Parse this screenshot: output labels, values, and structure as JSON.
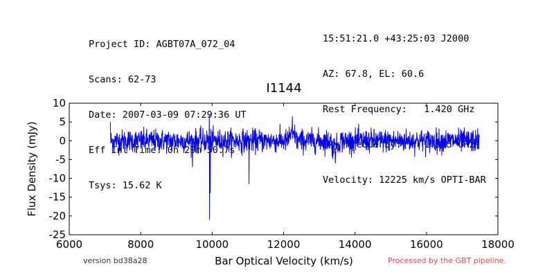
{
  "header_left": [
    "Project ID: AGBT07A_072_04",
    "Scans: 62-73",
    "Date: 2007-03-09 07:29:36 UT",
    "Eff Int Time: 0h 29m 50.7s",
    "Tsys: 15.62 K"
  ],
  "header_right": [
    "15:51:21.0 +43:25:03 J2000",
    "AZ: 67.8, EL: 60.6",
    "Rest Frequency:   1.420 GHz",
    "Sky Frequency:    1.365 GHz",
    "Velocity: 12225 km/s OPTI-BAR"
  ],
  "footer": {
    "version": "version bd38a28",
    "pipeline": "Processed by the GBT pipeline."
  },
  "colors": {
    "line": "#0000ff",
    "pipeline_text": "#ff4444",
    "axes": "#000000"
  },
  "chart_data": {
    "type": "line",
    "title": "I1144",
    "xlabel": "Bar Optical Velocity (km/s)",
    "ylabel": "Flux Density (mJy)",
    "xlim": [
      6000,
      18000
    ],
    "ylim": [
      -25,
      10
    ],
    "xticks": [
      6000,
      8000,
      10000,
      12000,
      14000,
      16000,
      18000
    ],
    "yticks": [
      10,
      5,
      0,
      -5,
      -10,
      -15,
      -20,
      -25
    ],
    "grid": false,
    "series": [
      {
        "color": "#0000ff",
        "x_range": [
          7150,
          17480
        ],
        "noise_rms": 1.5,
        "features": [
          {
            "x": 7150,
            "y": 5
          },
          {
            "x": 9450,
            "y": -7
          },
          {
            "x": 9920,
            "y": 7
          },
          {
            "x": 9930,
            "y": -21
          },
          {
            "x": 9945,
            "y": -14
          },
          {
            "x": 11030,
            "y": -11.5
          },
          {
            "x": 12250,
            "y": 6.5
          },
          {
            "x": 13450,
            "y": -6
          }
        ]
      }
    ]
  }
}
